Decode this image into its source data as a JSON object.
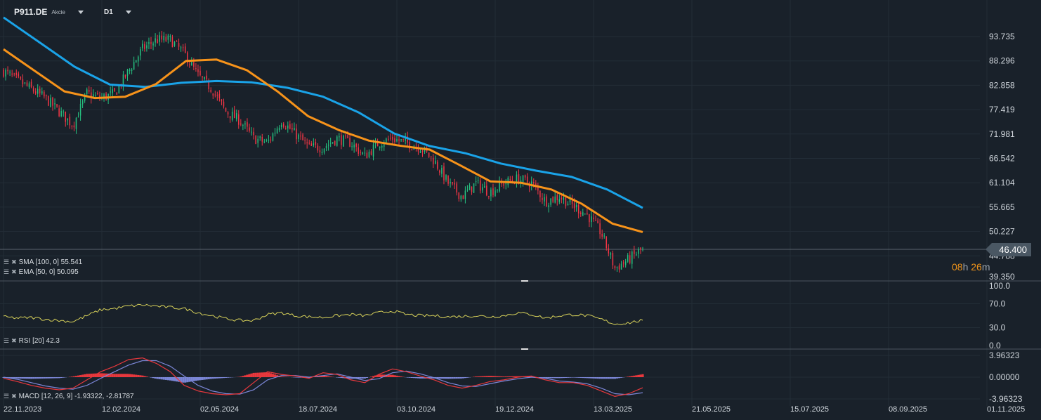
{
  "header": {
    "symbol": "P911.DE",
    "type": "Akcie",
    "timeframe": "D1"
  },
  "indicators": {
    "sma": "SMA [100,  0] 55.541",
    "ema": "EMA [50, 0] 50.095",
    "rsi": "RSI [20] 42.3",
    "macd": "MACD [12, 26, 9] -1.93322,  -2.81787"
  },
  "current_price": "46.400",
  "countdown": {
    "hours": "08",
    "h": "h",
    "minutes": "26",
    "m": "m"
  },
  "colors": {
    "bg": "#19212a",
    "sma": "#1aa3e8",
    "ema": "#f7931a",
    "up": "#26c281",
    "down": "#f23645",
    "rsi": "#d8d25a",
    "macd": "#e8383d",
    "signal": "#7b86d6",
    "hist_up": "#e8383d",
    "hist_down": "#7b86d6"
  },
  "chart_data": {
    "type": "candlestick",
    "price_axis": {
      "labels": [
        "93.735",
        "88.296",
        "82.858",
        "77.419",
        "71.981",
        "66.542",
        "61.104",
        "55.665",
        "50.227",
        "44.788",
        "39.350"
      ],
      "range": [
        39.35,
        93.735
      ]
    },
    "date_axis": [
      "22.11.2023",
      "12.02.2024",
      "02.05.2024",
      "18.07.2024",
      "03.10.2024",
      "19.12.2024",
      "13.03.2025",
      "21.05.2025",
      "15.07.2025",
      "08.09.2025",
      "01.11.2025"
    ],
    "close_samples": [
      86,
      84,
      82,
      80,
      77,
      74,
      81,
      80,
      81,
      86,
      91,
      93,
      93,
      90,
      85,
      82,
      77,
      75,
      71,
      70,
      75,
      72,
      69,
      69,
      71,
      70,
      67,
      70,
      71,
      70,
      69,
      66,
      61,
      58,
      61,
      59,
      61,
      62,
      61,
      57,
      58,
      56,
      54,
      50,
      42,
      44,
      46.4
    ],
    "sma100": [
      98,
      92.5,
      87,
      83,
      82.5,
      83.4,
      83.8,
      83.5,
      82.3,
      80.3,
      76.8,
      72.1,
      69.3,
      67.7,
      65.4,
      63.8,
      62.4,
      59.6,
      55.5
    ],
    "ema50": [
      90.9,
      86.2,
      81.5,
      80,
      80.3,
      83.1,
      88.3,
      88.6,
      86.2,
      81.5,
      76,
      72.9,
      70.5,
      69.4,
      68.5,
      65,
      61.4,
      61.1,
      59.6,
      56.4,
      52,
      50.1
    ],
    "rsi": {
      "labels": [
        "100.0",
        "70.0",
        "30.0",
        "0.0"
      ],
      "values": [
        48,
        46,
        47,
        44,
        42,
        40,
        50,
        60,
        62,
        66,
        68,
        66,
        64,
        62,
        55,
        50,
        45,
        42,
        42,
        52,
        55,
        50,
        48,
        47,
        50,
        52,
        50,
        55,
        58,
        52,
        50,
        50,
        48,
        49,
        50,
        48,
        50,
        55,
        52,
        46,
        50,
        52,
        50,
        44,
        36,
        38,
        42.3
      ]
    },
    "macd": {
      "labels": [
        "3.96323",
        "0.00000",
        "-3.96323"
      ],
      "range": [
        -3.96323,
        3.96323
      ],
      "macd": [
        -0.2,
        -0.8,
        -1.5,
        -2,
        -2.3,
        -2.0,
        -0.5,
        1,
        2,
        3.2,
        3.5,
        2.5,
        1,
        -1.5,
        -2.5,
        -3,
        -3.2,
        -3,
        -1,
        1,
        0.5,
        0.2,
        -0.2,
        0.8,
        0.5,
        -0.5,
        -1,
        0.5,
        1.5,
        1,
        0.2,
        -0.5,
        -1.5,
        -2,
        -1.5,
        -0.8,
        -0.5,
        0,
        0.2,
        -0.5,
        -1,
        -1,
        -1.5,
        -2.5,
        -3.5,
        -3,
        -1.93
      ],
      "signal": [
        0,
        -0.4,
        -1,
        -1.6,
        -2,
        -2.2,
        -1.5,
        -0.2,
        1,
        2.2,
        3,
        3,
        2,
        0.2,
        -1.5,
        -2.5,
        -3,
        -3.1,
        -2.3,
        -0.5,
        0.3,
        0.3,
        0,
        0.3,
        0.6,
        0,
        -0.6,
        -0.3,
        0.8,
        1.1,
        0.6,
        -0.1,
        -1,
        -1.6,
        -1.7,
        -1.2,
        -0.7,
        -0.3,
        0,
        -0.2,
        -0.7,
        -0.9,
        -1.2,
        -2,
        -3,
        -3.2,
        -2.82
      ]
    }
  }
}
